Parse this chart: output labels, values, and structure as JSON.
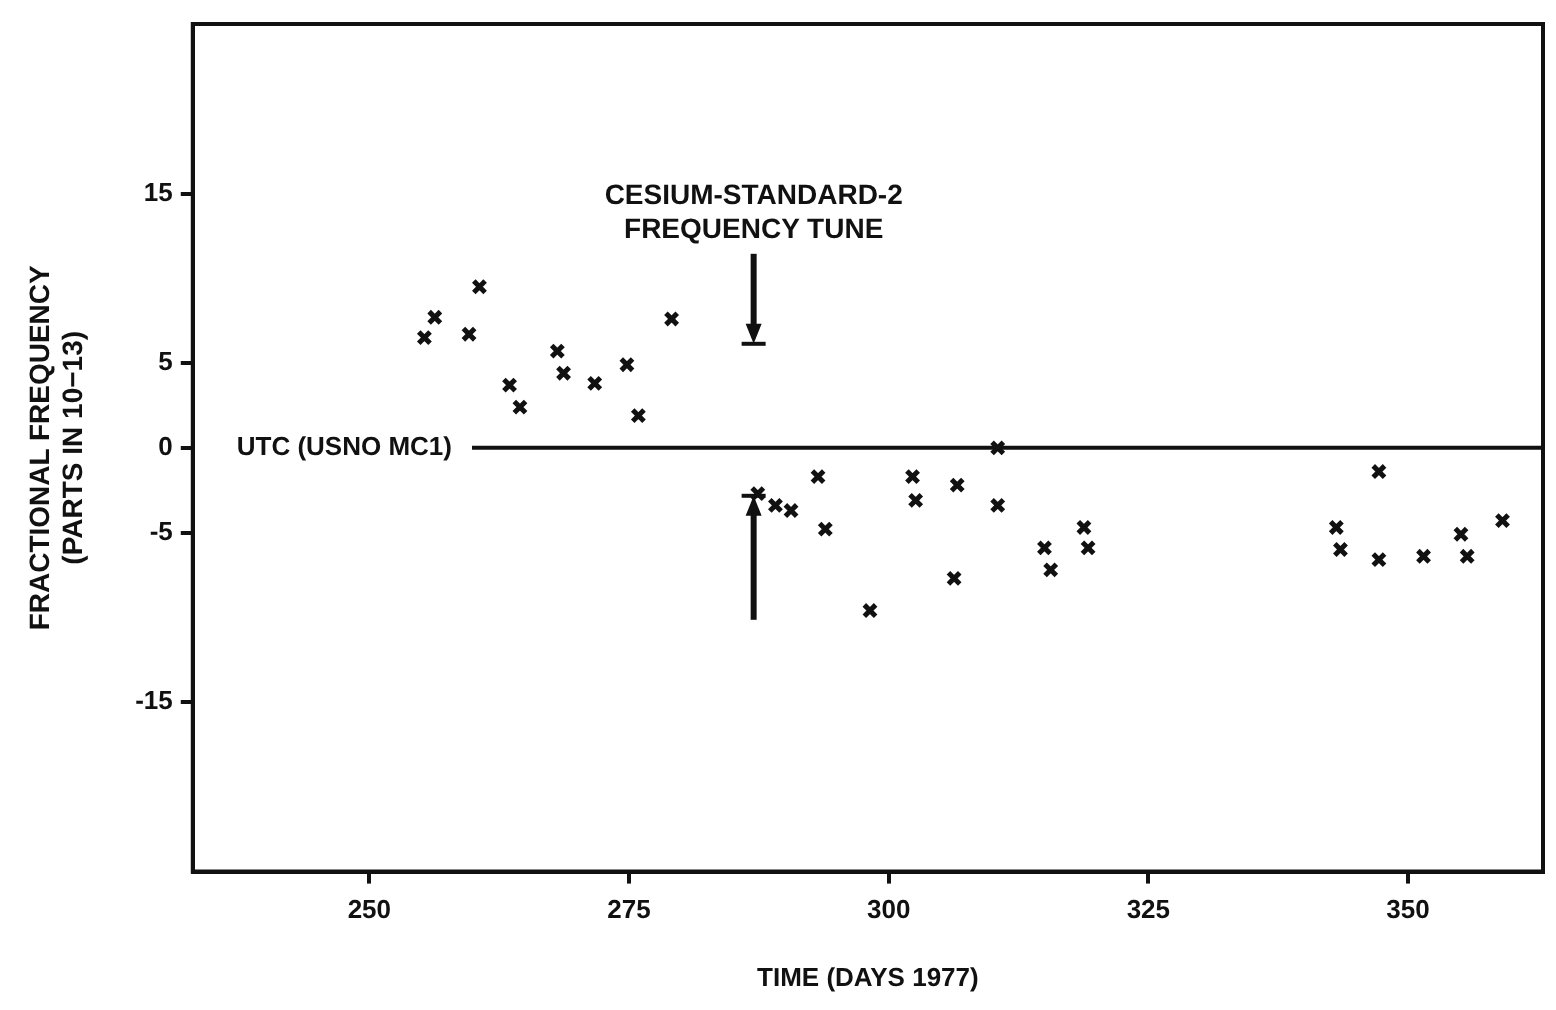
{
  "chart_data": {
    "type": "scatter",
    "xlabel": "TIME (DAYS 1977)",
    "ylabel": "FRACTIONAL FREQUENCY\n(PARTS IN 10−13)",
    "xlim": [
      233,
      363
    ],
    "xticks": [
      250,
      275,
      300,
      325,
      350
    ],
    "ylim": [
      -25,
      25
    ],
    "yticks": [
      15,
      5,
      0,
      -5,
      -15
    ],
    "marker": "cross",
    "series": [
      {
        "color": "#111111",
        "x": [
          255.3,
          256.3,
          259.6,
          260.6,
          263.5,
          264.5,
          268.1,
          268.7,
          271.7,
          274.8,
          275.9,
          279.1,
          287.4,
          289.1,
          290.6,
          293.2,
          293.9,
          298.2,
          302.3,
          302.6,
          306.6,
          306.3,
          310.5,
          310.5,
          315.0,
          315.6,
          318.8,
          319.2,
          343.1,
          343.5,
          347.2,
          347.2,
          351.5,
          355.1,
          355.7,
          359.1
        ],
        "values": [
          6.5,
          7.7,
          6.7,
          9.5,
          3.7,
          2.4,
          5.7,
          4.4,
          3.8,
          4.9,
          1.9,
          7.6,
          -2.7,
          -3.4,
          -3.7,
          -1.7,
          -4.8,
          -9.6,
          -1.7,
          -3.1,
          -2.2,
          -7.7,
          0,
          -3.4,
          -5.9,
          -7.2,
          -4.7,
          -5.9,
          -4.7,
          -6.0,
          -1.4,
          -6.6,
          -6.4,
          -5.1,
          -6.4,
          -4.3
        ]
      }
    ],
    "ref_lines": [
      {
        "axis": "y",
        "value": 0,
        "label": "UTC (USNO MC1)",
        "color": "#111111"
      },
      {
        "axis": "x",
        "value": 287,
        "label": "CESIUM-STANDARD-2\nFREQUENCY TUNE",
        "color": "#111111"
      }
    ]
  }
}
